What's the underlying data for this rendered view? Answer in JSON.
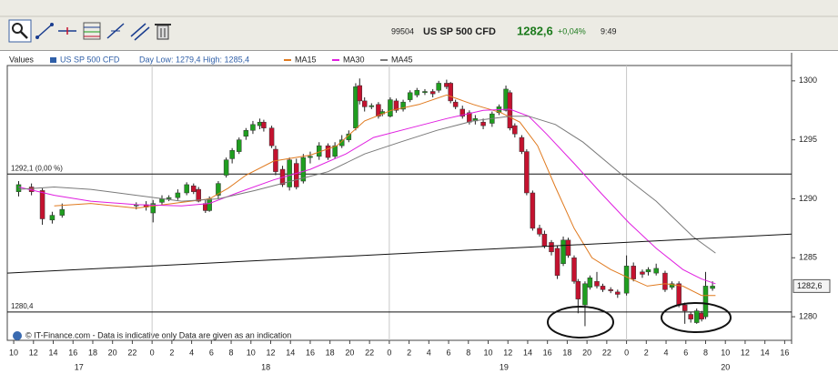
{
  "toolbar": {
    "code": "99504",
    "instrument": "US SP 500 CFD",
    "price": "1282,6",
    "change": "+0,04%",
    "time": "9:49"
  },
  "chart_data": {
    "type": "candlestick",
    "legend_label": "Values",
    "instrument": "US SP 500 CFD",
    "instrument_color": "#2f5fa8",
    "day_range": "Day Low: 1279,4 High: 1285,4",
    "footer": "© IT-Finance.com - Data is indicative only Data are given as an indication",
    "up_color": "#1f9e1f",
    "down_color": "#c4122f",
    "x": [
      10.5,
      11.8,
      12.9,
      13.9,
      14.9,
      22.4,
      23.4,
      24.1,
      25.0,
      25.7,
      26.6,
      27.5,
      28.2,
      28.7,
      29.4,
      29.8,
      30.7,
      31.5,
      32.1,
      32.8,
      33.5,
      34.2,
      34.9,
      35.3,
      36.1,
      36.5,
      37.2,
      37.9,
      38.6,
      39.3,
      40.0,
      40.9,
      41.8,
      42.5,
      43.2,
      43.9,
      44.6,
      45.0,
      45.5,
      46.2,
      46.9,
      47.3,
      48.1,
      48.7,
      49.4,
      50.1,
      50.8,
      51.6,
      52.4,
      53.0,
      53.8,
      54.2,
      54.7,
      55.4,
      56.1,
      56.7,
      57.5,
      58.4,
      59.1,
      59.8,
      60.2,
      60.7,
      61.4,
      61.9,
      62.5,
      63.2,
      63.7,
      64.4,
      65.0,
      65.6,
      66.1,
      66.7,
      67.1,
      67.8,
      68.3,
      69.0,
      69.6,
      70.4,
      71.1,
      72.0,
      72.7,
      73.6,
      74.2,
      75.0,
      75.9,
      76.6,
      77.3,
      77.9,
      78.5,
      79.1,
      79.6,
      80.0,
      80.7
    ],
    "open": [
      1290.6,
      1291.0,
      1290.7,
      1288.2,
      1288.6,
      1289.4,
      1289.5,
      1288.8,
      1289.7,
      1290.0,
      1290.1,
      1290.5,
      1291.1,
      1290.8,
      1289.6,
      1289.0,
      1290.3,
      1292.0,
      1293.4,
      1294.0,
      1295.3,
      1295.8,
      1296.2,
      1296.5,
      1296.0,
      1294.2,
      1292.5,
      1291.0,
      1293.0,
      1291.5,
      1293.5,
      1293.6,
      1294.5,
      1293.6,
      1294.5,
      1295.0,
      1296.0,
      1299.6,
      1298.3,
      1297.8,
      1298.0,
      1297.2,
      1297.0,
      1298.3,
      1297.6,
      1298.4,
      1298.8,
      1299.0,
      1299.1,
      1299.2,
      1299.8,
      1299.8,
      1298.2,
      1297.6,
      1297.3,
      1296.6,
      1296.5,
      1296.4,
      1297.3,
      1297.5,
      1299.0,
      1296.2,
      1295.2,
      1294.0,
      1290.5,
      1287.5,
      1287.0,
      1286.3,
      1285.8,
      1284.5,
      1286.5,
      1285.0,
      1283.0,
      1281.0,
      1282.5,
      1283.0,
      1282.6,
      1282.3,
      1282.1,
      1282.0,
      1284.3,
      1283.8,
      1283.8,
      1283.7,
      1283.7,
      1282.5,
      1282.8,
      1281.0,
      1280.2,
      1279.5,
      1280.3,
      1280.0,
      1282.4
    ],
    "high": [
      1291.5,
      1291.3,
      1290.9,
      1288.9,
      1289.6,
      1289.7,
      1289.8,
      1289.9,
      1290.3,
      1290.3,
      1290.8,
      1291.4,
      1291.3,
      1291.0,
      1289.9,
      1290.2,
      1291.5,
      1293.5,
      1294.3,
      1295.2,
      1296.0,
      1296.6,
      1296.8,
      1296.7,
      1296.2,
      1294.5,
      1292.8,
      1293.5,
      1293.4,
      1293.8,
      1294.0,
      1294.8,
      1294.7,
      1294.8,
      1295.4,
      1295.8,
      1299.8,
      1300.2,
      1298.6,
      1298.1,
      1298.2,
      1297.6,
      1298.6,
      1298.5,
      1298.4,
      1299.2,
      1299.4,
      1299.3,
      1299.3,
      1300.0,
      1300.1,
      1299.9,
      1298.4,
      1297.9,
      1297.5,
      1297.1,
      1296.8,
      1297.4,
      1298.0,
      1299.6,
      1299.2,
      1296.4,
      1295.4,
      1294.2,
      1290.7,
      1287.8,
      1287.3,
      1286.5,
      1286.0,
      1286.8,
      1286.7,
      1285.2,
      1283.2,
      1283.0,
      1283.5,
      1283.8,
      1282.8,
      1282.5,
      1282.3,
      1285.2,
      1284.6,
      1284.0,
      1284.2,
      1284.5,
      1283.9,
      1283.0,
      1283.0,
      1281.2,
      1280.4,
      1280.7,
      1280.5,
      1283.8,
      1283.0
    ],
    "low": [
      1290.2,
      1290.3,
      1287.8,
      1287.9,
      1288.4,
      1289.1,
      1289.0,
      1288.0,
      1289.5,
      1289.8,
      1289.9,
      1290.3,
      1290.4,
      1289.7,
      1288.8,
      1288.9,
      1290.0,
      1291.8,
      1293.0,
      1293.8,
      1295.0,
      1295.5,
      1295.9,
      1295.7,
      1294.3,
      1292.0,
      1291.0,
      1290.7,
      1290.8,
      1291.3,
      1293.0,
      1293.3,
      1293.3,
      1293.4,
      1294.3,
      1294.8,
      1295.8,
      1298.0,
      1297.4,
      1297.6,
      1296.8,
      1297.0,
      1296.9,
      1297.3,
      1297.4,
      1298.2,
      1298.6,
      1298.8,
      1298.6,
      1299.0,
      1299.3,
      1298.1,
      1297.6,
      1296.8,
      1296.3,
      1296.3,
      1295.9,
      1296.1,
      1297.1,
      1297.4,
      1295.8,
      1295.2,
      1293.8,
      1290.3,
      1287.3,
      1286.8,
      1285.8,
      1285.2,
      1283.2,
      1284.3,
      1285.0,
      1282.8,
      1280.3,
      1279.2,
      1282.3,
      1282.4,
      1282.1,
      1282.0,
      1281.6,
      1281.8,
      1283.0,
      1283.3,
      1283.5,
      1283.5,
      1282.1,
      1282.3,
      1280.8,
      1279.4,
      1279.5,
      1279.4,
      1279.6,
      1279.8,
      1282.2
    ],
    "close": [
      1291.2,
      1290.6,
      1288.3,
      1288.6,
      1289.1,
      1289.5,
      1289.3,
      1289.6,
      1290.0,
      1290.1,
      1290.5,
      1291.2,
      1290.6,
      1289.8,
      1289.0,
      1290.0,
      1291.3,
      1293.3,
      1294.1,
      1295.0,
      1295.8,
      1296.3,
      1296.5,
      1296.0,
      1294.5,
      1292.3,
      1291.2,
      1293.3,
      1291.0,
      1293.5,
      1293.6,
      1294.5,
      1293.5,
      1294.5,
      1295.0,
      1295.5,
      1299.5,
      1298.3,
      1297.8,
      1297.9,
      1297.0,
      1297.4,
      1298.4,
      1297.5,
      1298.2,
      1299.0,
      1299.2,
      1299.1,
      1298.9,
      1299.8,
      1299.5,
      1298.3,
      1297.8,
      1297.0,
      1296.5,
      1296.8,
      1296.2,
      1297.2,
      1297.8,
      1299.3,
      1296.0,
      1295.5,
      1294.0,
      1290.5,
      1287.5,
      1287.0,
      1286.0,
      1285.5,
      1283.5,
      1286.5,
      1285.2,
      1283.0,
      1281.5,
      1282.8,
      1283.3,
      1282.6,
      1282.3,
      1282.2,
      1281.9,
      1284.3,
      1283.2,
      1283.6,
      1284.0,
      1284.1,
      1282.3,
      1282.8,
      1281.0,
      1280.5,
      1279.8,
      1280.5,
      1279.8,
      1282.6,
      1282.6
    ],
    "series": [
      {
        "name": "MA15",
        "color": "#e07a1f",
        "x": [
          14.1,
          17.8,
          22.4,
          27.0,
          29.8,
          31.7,
          33.5,
          36.3,
          40.0,
          42.7,
          45.5,
          48.2,
          51.0,
          53.8,
          56.5,
          59.3,
          61.2,
          63.0,
          64.8,
          66.7,
          68.5,
          70.4,
          72.2,
          74.1,
          75.9,
          77.7,
          79.6,
          81.0
        ],
        "values": [
          1289.4,
          1289.6,
          1289.2,
          1289.7,
          1290.0,
          1290.9,
          1292.0,
          1293.2,
          1293.7,
          1294.5,
          1296.6,
          1297.5,
          1298.0,
          1298.8,
          1298.0,
          1297.3,
          1296.5,
          1294.5,
          1291.0,
          1287.5,
          1285.0,
          1284.0,
          1283.3,
          1282.6,
          1282.8,
          1282.6,
          1281.8,
          1281.8
        ]
      },
      {
        "name": "MA30",
        "color": "#e01ee0",
        "x": [
          10.5,
          14.1,
          17.8,
          22.4,
          27.0,
          29.8,
          32.6,
          36.3,
          40.0,
          43.6,
          46.4,
          50.1,
          53.8,
          57.5,
          60.2,
          62.1,
          63.9,
          66.7,
          69.4,
          72.2,
          75.0,
          77.7,
          79.6,
          81.0
        ],
        "values": [
          1291.0,
          1290.3,
          1289.8,
          1289.5,
          1289.4,
          1289.6,
          1290.5,
          1291.6,
          1292.5,
          1293.8,
          1295.2,
          1296.0,
          1296.8,
          1297.5,
          1297.6,
          1297.0,
          1295.5,
          1293.0,
          1290.5,
          1288.0,
          1285.8,
          1284.0,
          1283.2,
          1282.8
        ]
      },
      {
        "name": "MA45",
        "color": "#7a7a7a",
        "x": [
          10.5,
          14.1,
          17.8,
          22.4,
          27.0,
          30.7,
          34.4,
          38.1,
          41.8,
          45.5,
          49.1,
          52.8,
          56.5,
          60.2,
          62.1,
          64.8,
          67.6,
          71.3,
          75.0,
          78.7,
          81.0
        ],
        "values": [
          1290.8,
          1291.0,
          1290.8,
          1290.3,
          1289.8,
          1290.0,
          1290.7,
          1291.5,
          1292.3,
          1293.8,
          1294.8,
          1295.8,
          1296.6,
          1297.0,
          1297.0,
          1296.3,
          1294.8,
          1292.2,
          1289.8,
          1286.8,
          1285.4
        ]
      }
    ],
    "hlines": [
      {
        "value": 1292.1,
        "label": "1292,1 (0,00 %)"
      },
      {
        "value": 1280.4,
        "label": "1280,4"
      }
    ],
    "trendline": {
      "x": [
        9.35,
        88.7
      ],
      "values": [
        1283.7,
        1287.0
      ]
    },
    "last_price": {
      "value": 1282.6,
      "label": "1282,6"
    },
    "xlim": [
      9.35,
      88.7
    ],
    "xticks": [
      {
        "value": 10,
        "label": "10"
      },
      {
        "value": 12,
        "label": "12"
      },
      {
        "value": 14,
        "label": "14"
      },
      {
        "value": 16,
        "label": "16"
      },
      {
        "value": 18,
        "label": "18"
      },
      {
        "value": 20,
        "label": "20"
      },
      {
        "value": 22,
        "label": "22"
      },
      {
        "value": 24,
        "label": "0"
      },
      {
        "value": 26,
        "label": "2"
      },
      {
        "value": 28,
        "label": "4"
      },
      {
        "value": 30,
        "label": "6"
      },
      {
        "value": 32,
        "label": "8"
      },
      {
        "value": 34,
        "label": "10"
      },
      {
        "value": 36,
        "label": "12"
      },
      {
        "value": 38,
        "label": "14"
      },
      {
        "value": 40,
        "label": "16"
      },
      {
        "value": 42,
        "label": "18"
      },
      {
        "value": 44,
        "label": "20"
      },
      {
        "value": 46,
        "label": "22"
      },
      {
        "value": 48,
        "label": "0"
      },
      {
        "value": 50,
        "label": "2"
      },
      {
        "value": 52,
        "label": "4"
      },
      {
        "value": 54,
        "label": "6"
      },
      {
        "value": 56,
        "label": "8"
      },
      {
        "value": 58,
        "label": "10"
      },
      {
        "value": 60,
        "label": "12"
      },
      {
        "value": 62,
        "label": "14"
      },
      {
        "value": 64,
        "label": "16"
      },
      {
        "value": 66,
        "label": "18"
      },
      {
        "value": 68,
        "label": "20"
      },
      {
        "value": 70,
        "label": "22"
      },
      {
        "value": 72,
        "label": "0"
      },
      {
        "value": 74,
        "label": "2"
      },
      {
        "value": 76,
        "label": "4"
      },
      {
        "value": 78,
        "label": "6"
      },
      {
        "value": 80,
        "label": "8"
      },
      {
        "value": 82,
        "label": "10"
      },
      {
        "value": 84,
        "label": "12"
      },
      {
        "value": 86,
        "label": "14"
      },
      {
        "value": 88,
        "label": "16"
      }
    ],
    "day_labels": [
      {
        "value": 16.6,
        "label": "17"
      },
      {
        "value": 35.5,
        "label": "18"
      },
      {
        "value": 59.6,
        "label": "19"
      },
      {
        "value": 82.0,
        "label": "20"
      }
    ],
    "ylim": [
      1278.0,
      1301.3
    ],
    "yticks": [
      1280,
      1285,
      1290,
      1295,
      1300
    ],
    "grid": true
  }
}
